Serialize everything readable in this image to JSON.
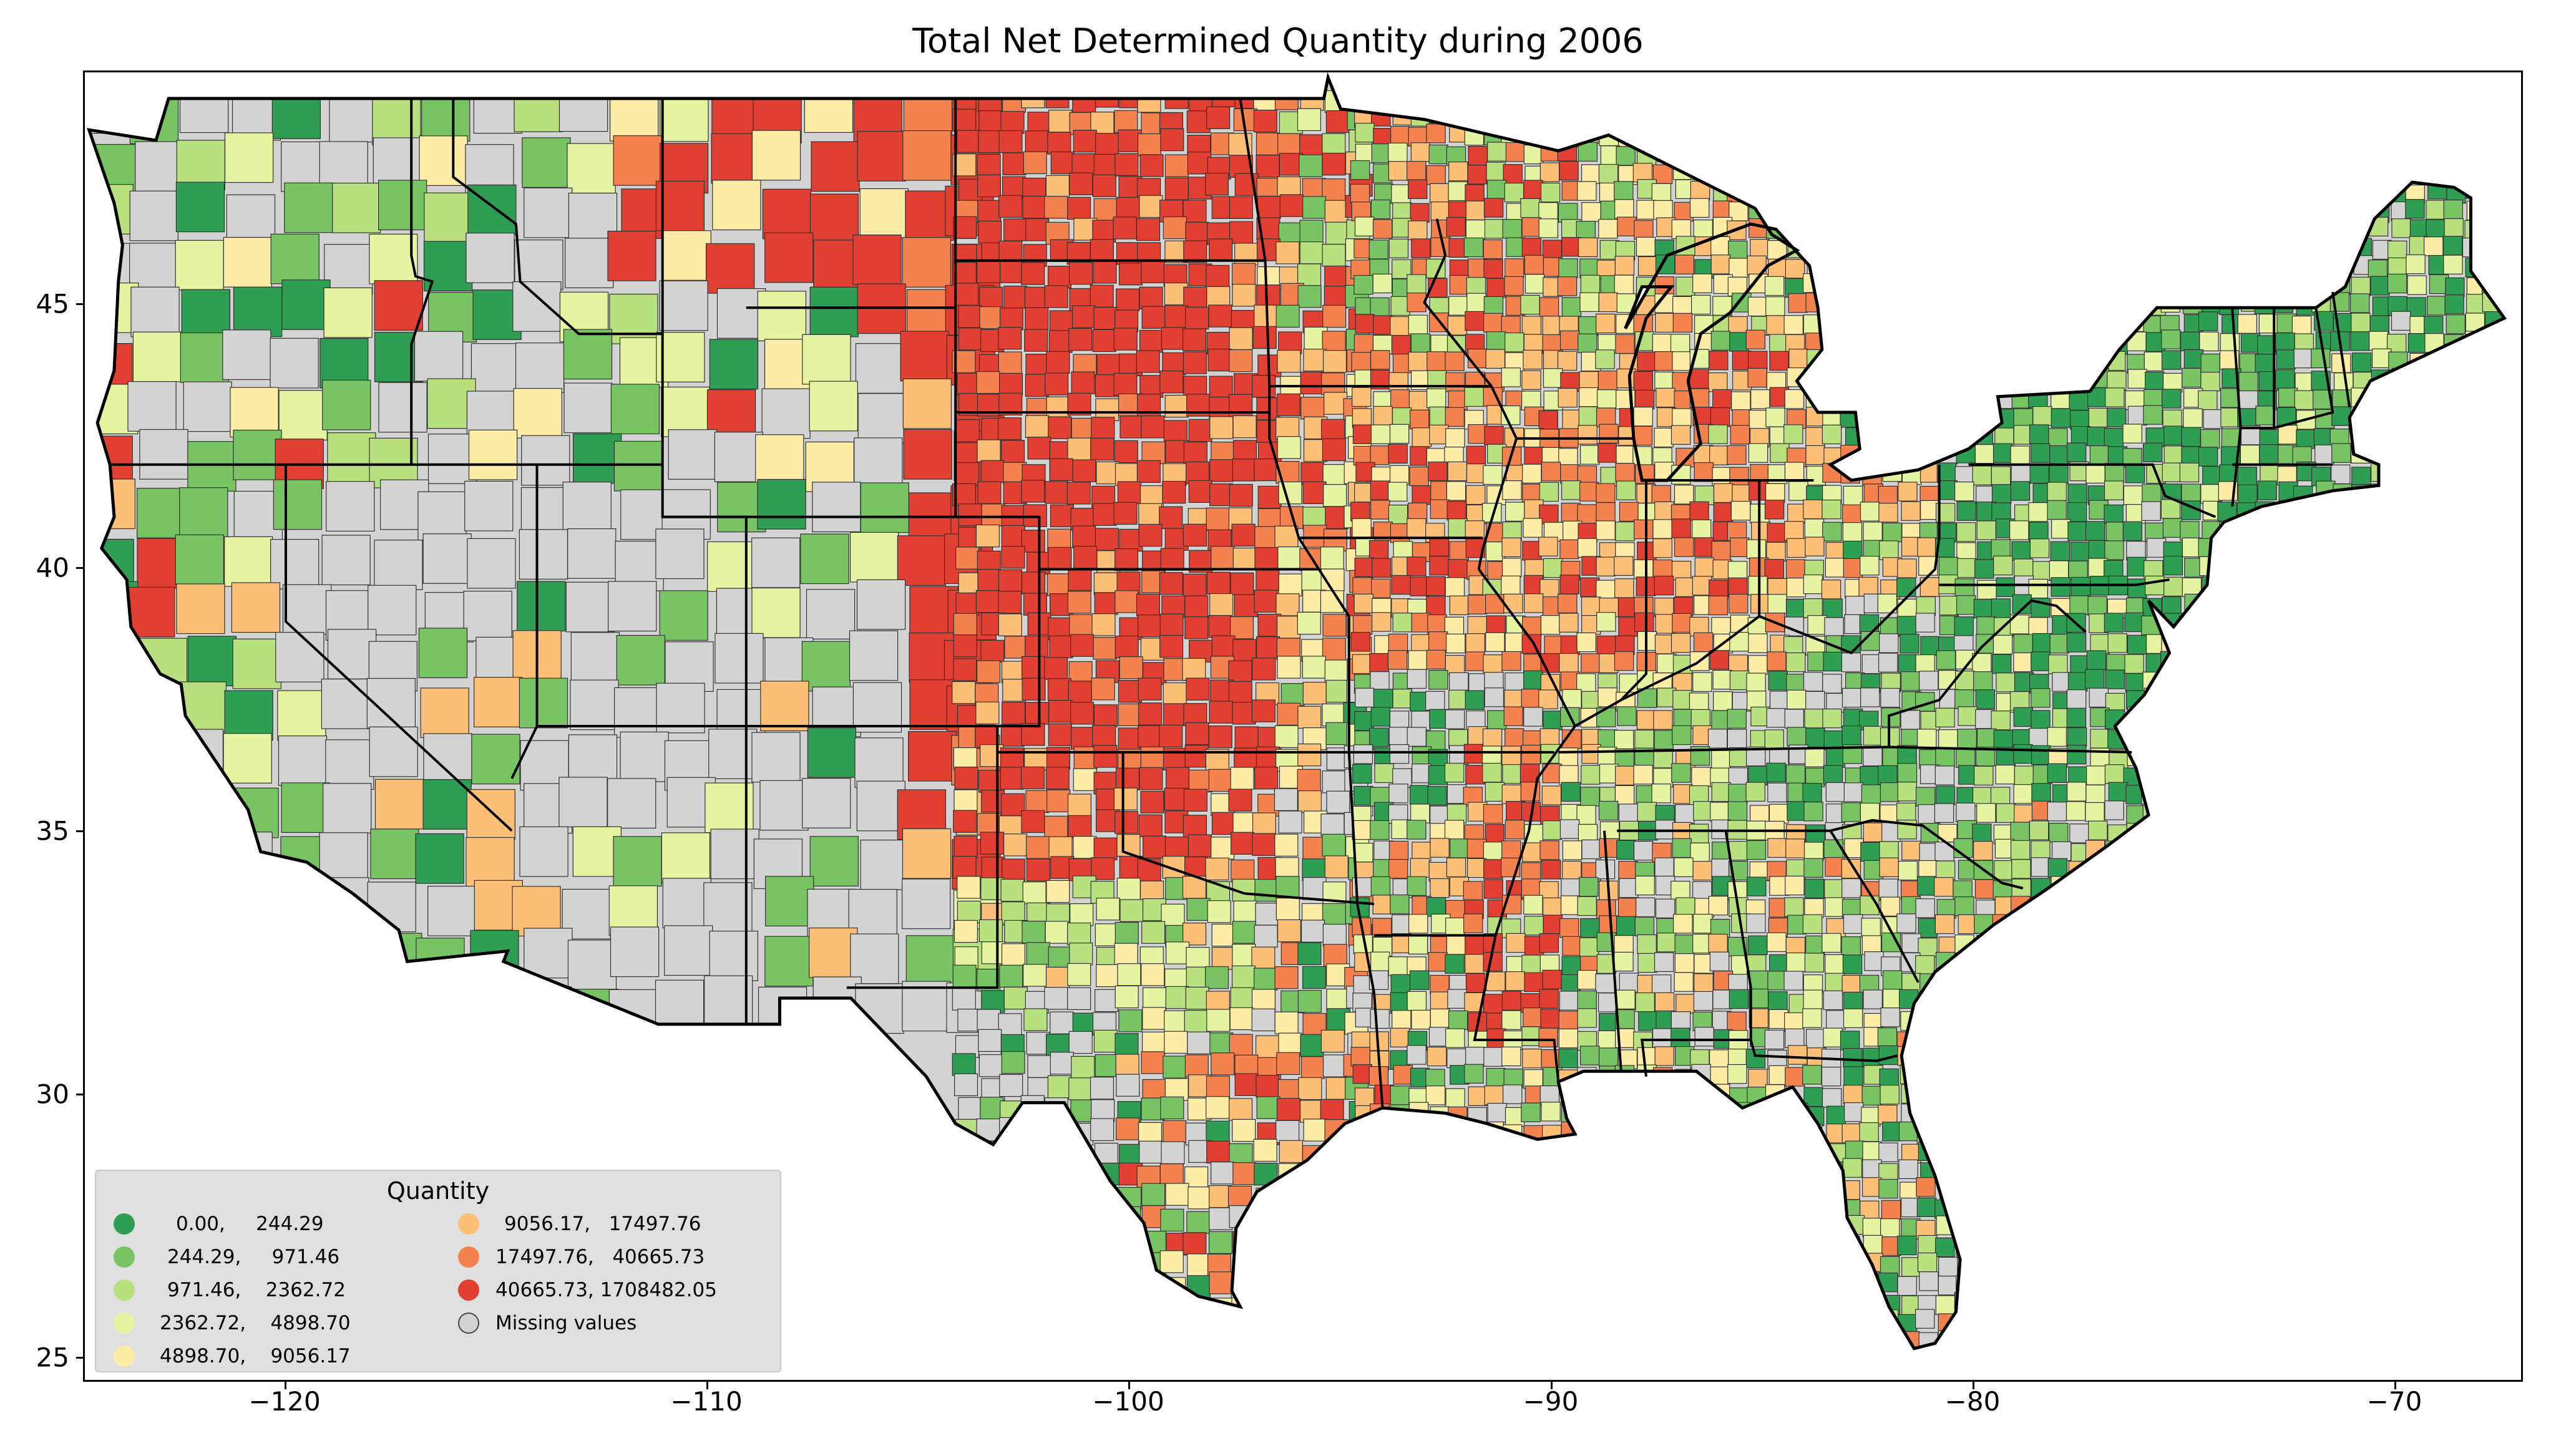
{
  "title": "Total Net Determined Quantity during 2006",
  "x_ticks": [
    "−120",
    "−110",
    "−100",
    "−90",
    "−80",
    "−70"
  ],
  "y_ticks": [
    "45",
    "40",
    "35",
    "30",
    "25"
  ],
  "legend": {
    "title": "Quantity",
    "items": [
      {
        "label": "0.00,     244.29",
        "color": "#2e9e52"
      },
      {
        "label": "244.29,     971.46",
        "color": "#78c464"
      },
      {
        "label": "971.46,    2362.72",
        "color": "#b9e07e"
      },
      {
        "label": "2362.72,    4898.70",
        "color": "#e6f4a2"
      },
      {
        "label": "4898.70,    9056.17",
        "color": "#fdeca6"
      },
      {
        "label": "9056.17,   17497.76",
        "color": "#fdbe75"
      },
      {
        "label": "17497.76,   40665.73",
        "color": "#f4824f"
      },
      {
        "label": "40665.73, 1708482.05",
        "color": "#e03f31"
      },
      {
        "label": "Missing values",
        "color": "#d3d3d3"
      }
    ]
  },
  "map": {
    "extent": {
      "lon_min": -124.8,
      "lon_max": -66.6,
      "lat_min": 24.5,
      "lat_max": 49.5
    },
    "missing_color": "#d3d3d3"
  }
}
